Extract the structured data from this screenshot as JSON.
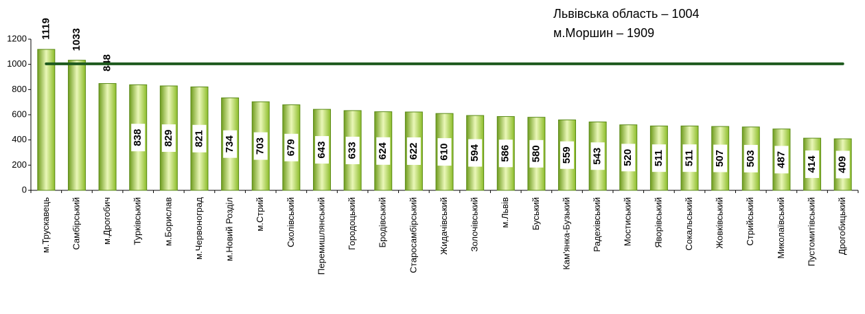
{
  "chart_data": {
    "type": "bar",
    "categories": [
      "м.Трускавець",
      "Самбірський",
      "м.Дрогобич",
      "Турківський",
      "м.Борислав",
      "м.Червоноград",
      "м.Новий Розділ",
      "м.Стрий",
      "Сколівський",
      "Перемишлянський",
      "Городоцький",
      "Бродівський",
      "Старосамбірський",
      "Жидачівський",
      "Золочівський",
      "м.Львів",
      "Буський",
      "Кам'янка-Бузький",
      "Радехівський",
      "Мостиський",
      "Яворівський",
      "Сокальський",
      "Жовківський",
      "Стрийський",
      "Миколаївський",
      "Пустомитівський",
      "Дрогобицький"
    ],
    "values": [
      1119,
      1033,
      848,
      838,
      829,
      821,
      734,
      703,
      679,
      643,
      633,
      624,
      622,
      610,
      594,
      586,
      580,
      559,
      543,
      520,
      511,
      511,
      507,
      503,
      487,
      414,
      409
    ],
    "color": "#99cc33",
    "ylim": [
      0,
      1200
    ],
    "yticks": [
      0,
      200,
      400,
      600,
      800,
      1000,
      1200
    ],
    "reference_line": {
      "value": 1004,
      "color": "#1e5a1e",
      "label": "Львівська область – 1004"
    },
    "annotation": "м.Моршин – 1909"
  }
}
